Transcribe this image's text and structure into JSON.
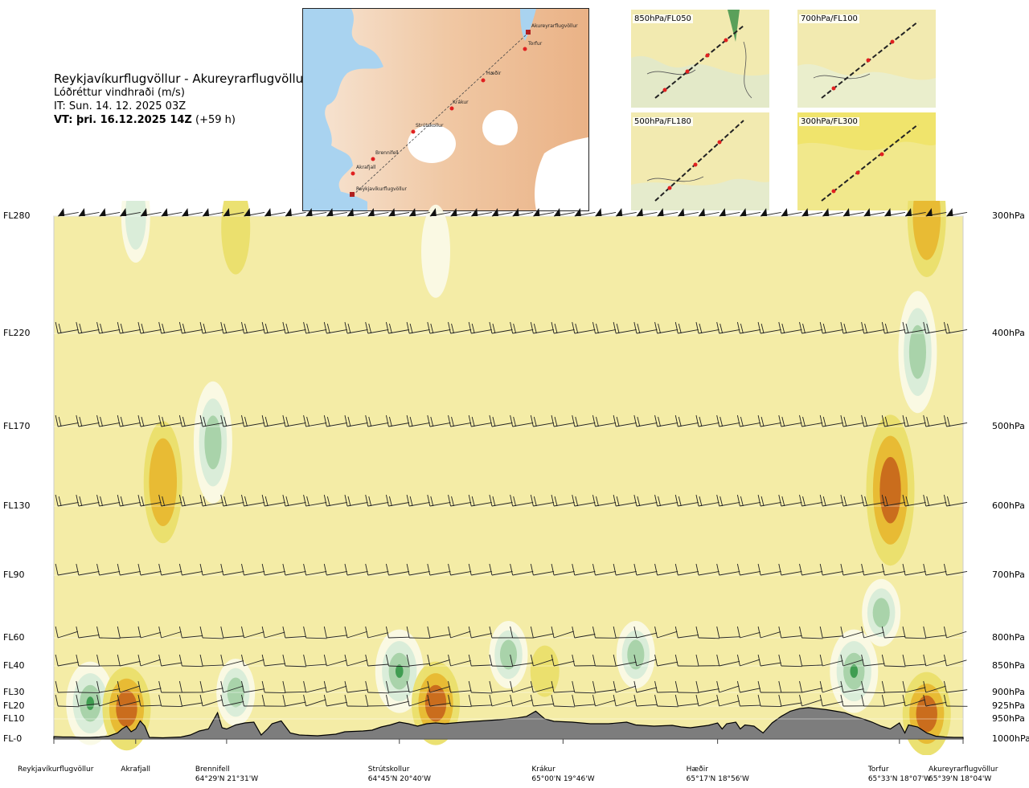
{
  "header": {
    "title": "Reykjavíkurflugvöllur - Akureyrarflugvöllur",
    "subtitle": "Lóðréttur vindhraði (m/s)",
    "issue_time": "IT: Sun. 14. 12. 2025 03Z",
    "valid_label": "VT: þri. 16.12.2025 14Z",
    "valid_offset": "(+59 h)"
  },
  "route_map": {
    "places": [
      "Akureyrarflugvöllur",
      "Torfur",
      "Hæðir",
      "Krákur",
      "Strútskollur",
      "Brennifell",
      "Akrafjall",
      "Reykjavíkurflugvöllur"
    ]
  },
  "thumbnails": [
    {
      "label": "850hPa/FL050"
    },
    {
      "label": "700hPa/FL100"
    },
    {
      "label": "500hPa/FL180"
    },
    {
      "label": "300hPa/FL300"
    }
  ],
  "colors": {
    "background_field": "#f4eca6",
    "weak_down": "#eadf6a",
    "strong_down": "#e8b830",
    "very_strong_down": "#c8681c",
    "weak_up": "#fafae6",
    "up": "#d8ecd8",
    "strong_up": "#a6d2a8",
    "very_strong_up": "#3a9a4c",
    "terrain": "#7d7d7d"
  },
  "chart_data": {
    "type": "heatmap",
    "title": "Lóðréttur vindhraði (m/s)",
    "y_levels": [
      {
        "fl": "FL280",
        "pressure": "300hPa"
      },
      {
        "fl": "FL220",
        "pressure": "400hPa"
      },
      {
        "fl": "FL170",
        "pressure": "500hPa"
      },
      {
        "fl": "FL130",
        "pressure": "600hPa"
      },
      {
        "fl": "FL90",
        "pressure": "700hPa"
      },
      {
        "fl": "FL60",
        "pressure": "800hPa"
      },
      {
        "fl": "FL40",
        "pressure": "850hPa"
      },
      {
        "fl": "FL30",
        "pressure": "900hPa"
      },
      {
        "fl": "FL20",
        "pressure": "925hPa"
      },
      {
        "fl": "FL10",
        "pressure": "950hPa"
      },
      {
        "fl": "FL-0",
        "pressure": "1000hPa"
      }
    ],
    "pressure_hpa": [
      300,
      400,
      500,
      600,
      700,
      800,
      850,
      900,
      925,
      950,
      1000
    ],
    "x_range": [
      0,
      100
    ],
    "locations": [
      {
        "name": "Reykjavíkurflugvöllur",
        "coord": "",
        "x": 0
      },
      {
        "name": "Akrafjall",
        "coord": "",
        "x": 9
      },
      {
        "name": "Brennifell",
        "coord": "64°29'N 21°31'W",
        "x": 19
      },
      {
        "name": "Strútskollur",
        "coord": "64°45'N 20°40'W",
        "x": 38
      },
      {
        "name": "Krákur",
        "coord": "65°00'N 19°46'W",
        "x": 56
      },
      {
        "name": "Hæðir",
        "coord": "65°17'N 18°56'W",
        "x": 73
      },
      {
        "name": "Torfur",
        "coord": "65°33'N 18°07'W",
        "x": 93
      },
      {
        "name": "Akureyrarflugvöllur",
        "coord": "65°39'N 18°04'W",
        "x": 100
      }
    ],
    "terrain_pressure_hpa": [
      [
        0,
        994
      ],
      [
        1,
        995
      ],
      [
        2,
        995
      ],
      [
        3,
        996
      ],
      [
        4,
        996
      ],
      [
        5,
        995
      ],
      [
        6,
        993
      ],
      [
        7,
        985
      ],
      [
        7.5,
        975
      ],
      [
        8,
        968
      ],
      [
        8.5,
        982
      ],
      [
        9,
        975
      ],
      [
        9.5,
        955
      ],
      [
        10,
        968
      ],
      [
        10.5,
        996
      ],
      [
        12,
        997
      ],
      [
        14,
        995
      ],
      [
        15,
        990
      ],
      [
        16,
        980
      ],
      [
        17,
        975
      ],
      [
        17.5,
        955
      ],
      [
        18,
        938
      ],
      [
        18.5,
        972
      ],
      [
        19,
        975
      ],
      [
        20,
        965
      ],
      [
        21,
        960
      ],
      [
        22,
        958
      ],
      [
        22.8,
        990
      ],
      [
        23.5,
        975
      ],
      [
        24,
        962
      ],
      [
        25,
        955
      ],
      [
        26,
        985
      ],
      [
        27,
        990
      ],
      [
        29,
        992
      ],
      [
        31,
        988
      ],
      [
        32,
        982
      ],
      [
        34,
        980
      ],
      [
        35,
        978
      ],
      [
        36,
        970
      ],
      [
        37,
        965
      ],
      [
        38,
        958
      ],
      [
        39,
        962
      ],
      [
        40,
        968
      ],
      [
        41,
        962
      ],
      [
        42,
        960
      ],
      [
        43,
        962
      ],
      [
        44,
        960
      ],
      [
        45,
        958
      ],
      [
        47,
        955
      ],
      [
        49,
        952
      ],
      [
        51,
        948
      ],
      [
        52,
        945
      ],
      [
        53,
        935
      ],
      [
        54,
        950
      ],
      [
        55,
        956
      ],
      [
        57,
        958
      ],
      [
        59,
        962
      ],
      [
        61,
        962
      ],
      [
        63,
        958
      ],
      [
        64,
        965
      ],
      [
        66,
        968
      ],
      [
        68,
        966
      ],
      [
        69,
        970
      ],
      [
        70,
        972
      ],
      [
        72,
        966
      ],
      [
        73,
        960
      ],
      [
        73.5,
        975
      ],
      [
        74,
        962
      ],
      [
        75,
        958
      ],
      [
        75.5,
        975
      ],
      [
        76,
        965
      ],
      [
        77,
        968
      ],
      [
        78,
        985
      ],
      [
        79,
        960
      ],
      [
        80,
        945
      ],
      [
        81,
        935
      ],
      [
        82,
        930
      ],
      [
        83,
        928
      ],
      [
        84,
        930
      ],
      [
        85,
        932
      ],
      [
        86,
        935
      ],
      [
        87,
        938
      ],
      [
        88,
        945
      ],
      [
        89,
        950
      ],
      [
        90,
        958
      ],
      [
        91,
        968
      ],
      [
        92,
        975
      ],
      [
        93,
        960
      ],
      [
        93.6,
        985
      ],
      [
        94,
        965
      ],
      [
        95,
        970
      ],
      [
        96,
        985
      ],
      [
        97,
        993
      ],
      [
        98,
        995
      ],
      [
        99,
        996
      ],
      [
        100,
        996
      ]
    ],
    "contour_levels_ms": [
      -3,
      -1.5,
      -0.5,
      0.25,
      0.5,
      1.5,
      3
    ],
    "features": [
      {
        "x": 4,
        "p": 920,
        "kind": "up",
        "strength": 3
      },
      {
        "x": 8,
        "p": 930,
        "kind": "down",
        "strength": 3
      },
      {
        "x": 17.5,
        "p": 520,
        "kind": "up",
        "strength": 2
      },
      {
        "x": 12,
        "p": 570,
        "kind": "down",
        "strength": 2
      },
      {
        "x": 20,
        "p": 900,
        "kind": "up",
        "strength": 2
      },
      {
        "x": 38,
        "p": 860,
        "kind": "up",
        "strength": 3
      },
      {
        "x": 42,
        "p": 920,
        "kind": "down",
        "strength": 3
      },
      {
        "x": 50,
        "p": 830,
        "kind": "up",
        "strength": 2
      },
      {
        "x": 54,
        "p": 860,
        "kind": "down",
        "strength": 1
      },
      {
        "x": 64,
        "p": 830,
        "kind": "up",
        "strength": 2
      },
      {
        "x": 88,
        "p": 860,
        "kind": "up",
        "strength": 3
      },
      {
        "x": 92,
        "p": 580,
        "kind": "down",
        "strength": 3
      },
      {
        "x": 95,
        "p": 420,
        "kind": "up",
        "strength": 2
      },
      {
        "x": 91,
        "p": 760,
        "kind": "up",
        "strength": 2
      },
      {
        "x": 96,
        "p": 940,
        "kind": "down",
        "strength": 3
      },
      {
        "x": 20,
        "p": 310,
        "kind": "down",
        "strength": 1
      },
      {
        "x": 96,
        "p": 300,
        "kind": "down",
        "strength": 2
      },
      {
        "x": 42,
        "p": 330,
        "kind": "weak_up",
        "strength": 1
      },
      {
        "x": 9,
        "p": 300,
        "kind": "up",
        "strength": 1
      }
    ],
    "wind_barb_levels_hpa": [
      300,
      400,
      500,
      600,
      700,
      800,
      850,
      900,
      925
    ]
  }
}
